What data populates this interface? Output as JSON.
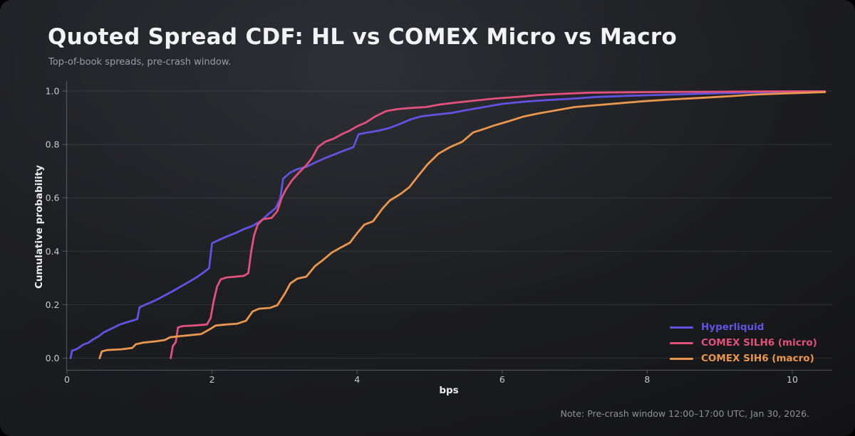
{
  "title": "Quoted Spread CDF: HL vs COMEX Micro vs Macro",
  "subtitle": "Top-of-book spreads, pre-crash window.",
  "note": "Note: Pre-crash window 12:00–17:00 UTC, Jan 30, 2026.",
  "chart_data": {
    "type": "line",
    "subtype": "empirical-cdf",
    "title": "Quoted Spread CDF: HL vs COMEX Micro vs Macro",
    "xlabel": "bps",
    "ylabel": "Cumulative probability",
    "xlim": [
      -0.05,
      10.55
    ],
    "ylim": [
      -0.045,
      1.04
    ],
    "xticks": [
      0,
      2,
      4,
      6,
      8,
      10
    ],
    "yticks": [
      0.0,
      0.2,
      0.4,
      0.6,
      0.8,
      1.0
    ],
    "grid": "horizontal-only",
    "legend_position": "lower-right",
    "series": [
      {
        "name": "Hyperliquid",
        "color": "#6153e0",
        "points": [
          [
            0.05,
            0.0
          ],
          [
            0.07,
            0.028
          ],
          [
            0.13,
            0.033
          ],
          [
            0.18,
            0.042
          ],
          [
            0.22,
            0.05
          ],
          [
            0.3,
            0.058
          ],
          [
            0.36,
            0.07
          ],
          [
            0.44,
            0.082
          ],
          [
            0.5,
            0.095
          ],
          [
            0.57,
            0.105
          ],
          [
            0.65,
            0.115
          ],
          [
            0.72,
            0.125
          ],
          [
            0.8,
            0.132
          ],
          [
            0.9,
            0.14
          ],
          [
            0.97,
            0.146
          ],
          [
            1.0,
            0.19
          ],
          [
            1.08,
            0.2
          ],
          [
            1.17,
            0.21
          ],
          [
            1.26,
            0.222
          ],
          [
            1.35,
            0.235
          ],
          [
            1.44,
            0.248
          ],
          [
            1.53,
            0.262
          ],
          [
            1.62,
            0.276
          ],
          [
            1.71,
            0.29
          ],
          [
            1.8,
            0.305
          ],
          [
            1.88,
            0.32
          ],
          [
            1.96,
            0.337
          ],
          [
            2.0,
            0.43
          ],
          [
            2.1,
            0.443
          ],
          [
            2.2,
            0.455
          ],
          [
            2.32,
            0.468
          ],
          [
            2.44,
            0.483
          ],
          [
            2.56,
            0.495
          ],
          [
            2.68,
            0.515
          ],
          [
            2.78,
            0.54
          ],
          [
            2.88,
            0.562
          ],
          [
            2.94,
            0.598
          ],
          [
            2.98,
            0.672
          ],
          [
            3.08,
            0.695
          ],
          [
            3.18,
            0.708
          ],
          [
            3.3,
            0.716
          ],
          [
            3.42,
            0.732
          ],
          [
            3.55,
            0.748
          ],
          [
            3.68,
            0.762
          ],
          [
            3.8,
            0.775
          ],
          [
            3.95,
            0.79
          ],
          [
            4.02,
            0.838
          ],
          [
            4.15,
            0.845
          ],
          [
            4.3,
            0.852
          ],
          [
            4.45,
            0.862
          ],
          [
            4.6,
            0.878
          ],
          [
            4.75,
            0.895
          ],
          [
            4.9,
            0.906
          ],
          [
            5.1,
            0.912
          ],
          [
            5.3,
            0.918
          ],
          [
            5.5,
            0.928
          ],
          [
            5.75,
            0.94
          ],
          [
            6.0,
            0.952
          ],
          [
            6.3,
            0.96
          ],
          [
            6.6,
            0.966
          ],
          [
            6.95,
            0.971
          ],
          [
            7.3,
            0.978
          ],
          [
            7.7,
            0.982
          ],
          [
            8.1,
            0.985
          ],
          [
            8.5,
            0.988
          ],
          [
            9.0,
            0.992
          ],
          [
            9.5,
            0.995
          ],
          [
            10.0,
            0.997
          ],
          [
            10.45,
            0.998
          ]
        ]
      },
      {
        "name": "COMEX SILH6 (micro)",
        "color": "#e0527c",
        "points": [
          [
            1.43,
            0.0
          ],
          [
            1.46,
            0.045
          ],
          [
            1.5,
            0.06
          ],
          [
            1.53,
            0.115
          ],
          [
            1.6,
            0.12
          ],
          [
            1.75,
            0.122
          ],
          [
            1.93,
            0.126
          ],
          [
            1.98,
            0.15
          ],
          [
            2.02,
            0.21
          ],
          [
            2.07,
            0.268
          ],
          [
            2.12,
            0.295
          ],
          [
            2.2,
            0.302
          ],
          [
            2.32,
            0.305
          ],
          [
            2.44,
            0.308
          ],
          [
            2.5,
            0.318
          ],
          [
            2.54,
            0.4
          ],
          [
            2.58,
            0.46
          ],
          [
            2.63,
            0.5
          ],
          [
            2.7,
            0.52
          ],
          [
            2.82,
            0.525
          ],
          [
            2.9,
            0.55
          ],
          [
            2.96,
            0.6
          ],
          [
            3.02,
            0.632
          ],
          [
            3.1,
            0.665
          ],
          [
            3.2,
            0.695
          ],
          [
            3.3,
            0.722
          ],
          [
            3.38,
            0.75
          ],
          [
            3.46,
            0.79
          ],
          [
            3.56,
            0.81
          ],
          [
            3.68,
            0.822
          ],
          [
            3.8,
            0.84
          ],
          [
            3.9,
            0.852
          ],
          [
            4.0,
            0.868
          ],
          [
            4.12,
            0.882
          ],
          [
            4.25,
            0.905
          ],
          [
            4.4,
            0.925
          ],
          [
            4.55,
            0.932
          ],
          [
            4.75,
            0.937
          ],
          [
            4.95,
            0.94
          ],
          [
            5.15,
            0.95
          ],
          [
            5.4,
            0.958
          ],
          [
            5.65,
            0.965
          ],
          [
            5.9,
            0.972
          ],
          [
            6.2,
            0.978
          ],
          [
            6.5,
            0.985
          ],
          [
            6.85,
            0.99
          ],
          [
            7.2,
            0.994
          ],
          [
            7.6,
            0.995
          ],
          [
            8.0,
            0.996
          ],
          [
            8.6,
            0.997
          ],
          [
            9.2,
            0.998
          ],
          [
            10.0,
            0.999
          ],
          [
            10.45,
            0.999
          ]
        ]
      },
      {
        "name": "COMEX SIH6 (macro)",
        "color": "#e9964f",
        "points": [
          [
            0.45,
            0.0
          ],
          [
            0.48,
            0.025
          ],
          [
            0.55,
            0.03
          ],
          [
            0.75,
            0.033
          ],
          [
            0.9,
            0.038
          ],
          [
            0.95,
            0.052
          ],
          [
            1.05,
            0.058
          ],
          [
            1.2,
            0.062
          ],
          [
            1.35,
            0.068
          ],
          [
            1.42,
            0.078
          ],
          [
            1.55,
            0.082
          ],
          [
            1.7,
            0.086
          ],
          [
            1.85,
            0.09
          ],
          [
            1.97,
            0.108
          ],
          [
            2.05,
            0.122
          ],
          [
            2.2,
            0.126
          ],
          [
            2.35,
            0.129
          ],
          [
            2.47,
            0.14
          ],
          [
            2.56,
            0.175
          ],
          [
            2.65,
            0.185
          ],
          [
            2.8,
            0.188
          ],
          [
            2.9,
            0.198
          ],
          [
            3.0,
            0.24
          ],
          [
            3.08,
            0.28
          ],
          [
            3.18,
            0.298
          ],
          [
            3.3,
            0.305
          ],
          [
            3.42,
            0.345
          ],
          [
            3.52,
            0.365
          ],
          [
            3.65,
            0.395
          ],
          [
            3.78,
            0.415
          ],
          [
            3.9,
            0.432
          ],
          [
            4.0,
            0.468
          ],
          [
            4.1,
            0.5
          ],
          [
            4.22,
            0.512
          ],
          [
            4.35,
            0.56
          ],
          [
            4.45,
            0.59
          ],
          [
            4.6,
            0.615
          ],
          [
            4.72,
            0.64
          ],
          [
            4.85,
            0.685
          ],
          [
            4.97,
            0.725
          ],
          [
            5.12,
            0.765
          ],
          [
            5.28,
            0.79
          ],
          [
            5.45,
            0.81
          ],
          [
            5.6,
            0.845
          ],
          [
            5.75,
            0.858
          ],
          [
            5.9,
            0.872
          ],
          [
            6.1,
            0.888
          ],
          [
            6.3,
            0.905
          ],
          [
            6.5,
            0.916
          ],
          [
            6.75,
            0.928
          ],
          [
            7.0,
            0.94
          ],
          [
            7.3,
            0.947
          ],
          [
            7.6,
            0.954
          ],
          [
            7.95,
            0.962
          ],
          [
            8.3,
            0.968
          ],
          [
            8.7,
            0.974
          ],
          [
            9.1,
            0.98
          ],
          [
            9.5,
            0.987
          ],
          [
            9.9,
            0.991
          ],
          [
            10.45,
            0.996
          ]
        ]
      }
    ]
  }
}
